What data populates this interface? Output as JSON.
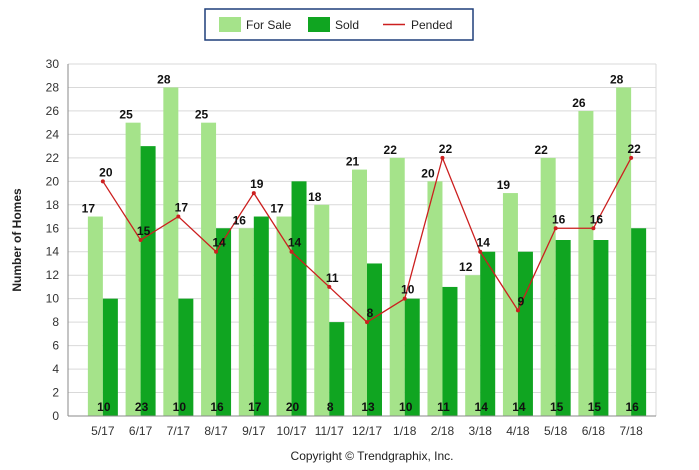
{
  "chart_data": {
    "type": "bar",
    "categories": [
      "5/17",
      "6/17",
      "7/17",
      "8/17",
      "9/17",
      "10/17",
      "11/17",
      "12/17",
      "1/18",
      "2/18",
      "3/18",
      "4/18",
      "5/18",
      "6/18",
      "7/18"
    ],
    "series": [
      {
        "name": "For Sale",
        "type": "bar",
        "color": "#a5e38a",
        "values": [
          17,
          25,
          28,
          25,
          16,
          17,
          18,
          21,
          22,
          20,
          12,
          19,
          22,
          26,
          28
        ]
      },
      {
        "name": "Sold",
        "type": "bar",
        "color": "#10a521",
        "values": [
          10,
          23,
          10,
          16,
          17,
          20,
          8,
          13,
          10,
          11,
          14,
          14,
          15,
          15,
          16
        ]
      },
      {
        "name": "Pended",
        "type": "line",
        "color": "#cc1f1f",
        "values": [
          20,
          15,
          17,
          14,
          19,
          14,
          11,
          8,
          10,
          22,
          14,
          9,
          16,
          16,
          22
        ]
      }
    ],
    "ylabel": "Number of Homes",
    "xlabel": "",
    "ylim": [
      0,
      30
    ],
    "yticks": [
      0,
      2,
      4,
      6,
      8,
      10,
      12,
      14,
      16,
      18,
      20,
      22,
      24,
      26,
      28,
      30
    ],
    "grid": true,
    "legend_position": "top-center"
  },
  "footer": {
    "copyright": "Copyright © Trendgraphix, Inc."
  }
}
